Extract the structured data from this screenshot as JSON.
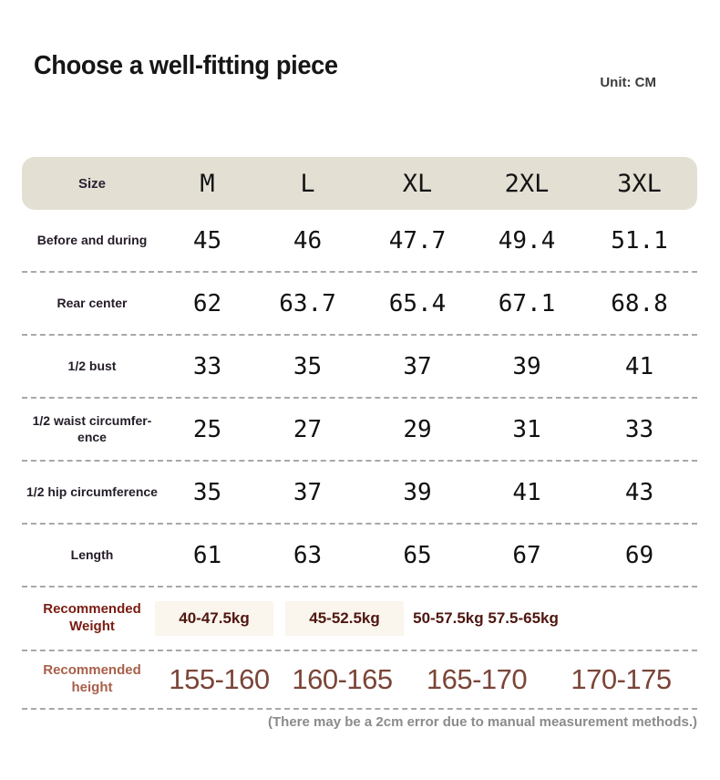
{
  "page": {
    "title": "Choose a well-fitting piece",
    "unit_label": "Unit: CM",
    "note": "(There may be a 2cm error due to manual measurement methods.)"
  },
  "colors": {
    "header_background": "#e3dfd3",
    "maroon_label": "#7a1c12",
    "weight_value": "#4e1710",
    "height_label": "#a8604a",
    "height_value": "#7b4538",
    "note_gray": "#8b8b8b",
    "dashed_line": "#a8a8a8"
  },
  "table": {
    "header": {
      "size_label": "Size",
      "columns": [
        "M",
        "L",
        "XL",
        "2XL",
        "3XL"
      ]
    },
    "rows": [
      {
        "label": "Before and during",
        "values": [
          "45",
          "46",
          "47.7",
          "49.4",
          "51.1"
        ]
      },
      {
        "label": "Rear center",
        "values": [
          "62",
          "63.7",
          "65.4",
          "67.1",
          "68.8"
        ]
      },
      {
        "label": "1/2 bust",
        "values": [
          "33",
          "35",
          "37",
          "39",
          "41"
        ]
      },
      {
        "label": "1/2 waist circumfer-\nence",
        "values": [
          "25",
          "27",
          "29",
          "31",
          "33"
        ]
      },
      {
        "label": "1/2 hip circumference",
        "values": [
          "35",
          "37",
          "39",
          "41",
          "43"
        ]
      },
      {
        "label": "Length",
        "values": [
          "61",
          "63",
          "65",
          "67",
          "69"
        ]
      }
    ],
    "weight_row": {
      "label": "Recommended\nWeight",
      "values": [
        "40-47.5kg",
        "45-52.5kg",
        "50-57.5kg 57.5-65kg"
      ]
    },
    "height_row": {
      "label": "Recommended\nheight",
      "values": [
        "155-160",
        "160-165",
        "165-170",
        "170-175"
      ]
    }
  }
}
